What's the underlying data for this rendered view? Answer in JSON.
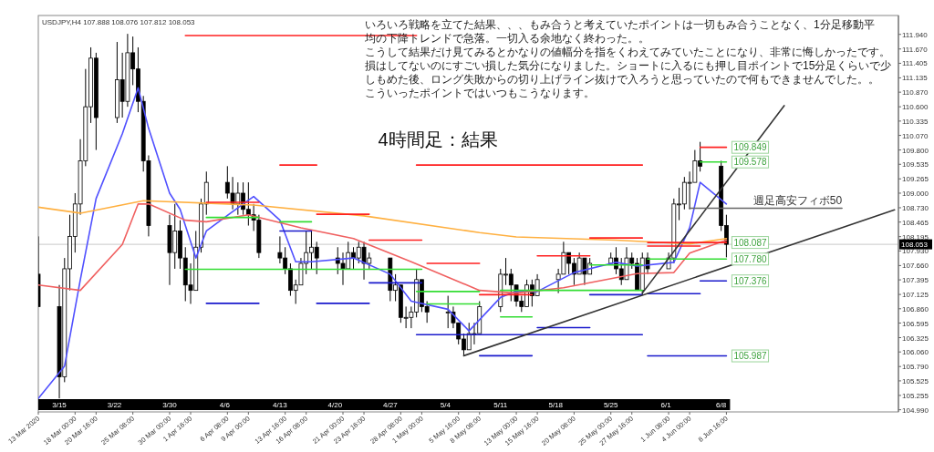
{
  "chart_data": {
    "type": "candlestick",
    "title": "4時間足：結果",
    "subtitle": "USDJPY,H4  107.888 108.076 107.812 108.053",
    "x": [
      "2020-03-13T08:00",
      "2020-03-16T00:00",
      "2020-03-16T16:00",
      "2020-03-17T08:00",
      "2020-03-18T00:00",
      "2020-03-18T16:00",
      "2020-03-19T08:00",
      "2020-03-20T00:00",
      "2020-03-20T16:00",
      "2020-03-23T08:00",
      "2020-03-24T00:00",
      "2020-03-24T16:00",
      "2020-03-25T08:00",
      "2020-03-26T00:00",
      "2020-03-26T16:00",
      "2020-03-27T08:00",
      "2020-03-30T00:00",
      "2020-03-30T16:00",
      "2020-03-31T08:00",
      "2020-04-01T00:00",
      "2020-04-01T16:00",
      "2020-04-02T08:00",
      "2020-04-03T00:00",
      "2020-04-03T16:00",
      "2020-04-06T08:00",
      "2020-04-07T00:00",
      "2020-04-07T16:00",
      "2020-04-08T08:00",
      "2020-04-09T00:00",
      "2020-04-09T16:00",
      "2020-04-10T08:00",
      "2020-04-13T00:00",
      "2020-04-13T16:00",
      "2020-04-14T08:00",
      "2020-04-15T00:00",
      "2020-04-15T16:00",
      "2020-04-16T08:00",
      "2020-04-17T00:00",
      "2020-04-17T16:00",
      "2020-04-20T08:00",
      "2020-04-21T00:00",
      "2020-04-21T16:00",
      "2020-04-22T08:00",
      "2020-04-23T00:00",
      "2020-04-23T16:00",
      "2020-04-24T08:00",
      "2020-04-27T00:00",
      "2020-04-27T16:00",
      "2020-04-28T08:00",
      "2020-04-29T00:00",
      "2020-04-29T16:00",
      "2020-04-30T08:00",
      "2020-05-01T00:00",
      "2020-05-01T16:00",
      "2020-05-04T08:00",
      "2020-05-05T00:00",
      "2020-05-05T16:00",
      "2020-05-06T08:00",
      "2020-05-07T00:00",
      "2020-05-07T16:00",
      "2020-05-08T08:00",
      "2020-05-11T00:00",
      "2020-05-11T16:00",
      "2020-05-12T08:00",
      "2020-05-13T00:00",
      "2020-05-13T16:00",
      "2020-05-14T08:00",
      "2020-05-15T00:00",
      "2020-05-15T16:00",
      "2020-05-18T08:00",
      "2020-05-19T00:00",
      "2020-05-19T16:00",
      "2020-05-20T08:00",
      "2020-05-21T00:00",
      "2020-05-21T16:00",
      "2020-05-22T08:00",
      "2020-05-25T00:00",
      "2020-05-25T16:00",
      "2020-05-26T08:00",
      "2020-05-27T00:00",
      "2020-05-27T16:00",
      "2020-05-28T08:00",
      "2020-05-29T00:00",
      "2020-05-29T16:00",
      "2020-06-01T08:00",
      "2020-06-02T00:00",
      "2020-06-02T16:00",
      "2020-06-03T08:00",
      "2020-06-04T00:00",
      "2020-06-04T16:00",
      "2020-06-05T08:00",
      "2020-06-08T00:00",
      "2020-06-08T16:00"
    ],
    "ohlc": [
      [
        107.5,
        108.2,
        106.9,
        106.9
      ],
      [
        106.9,
        107.3,
        105.2,
        105.6
      ],
      [
        105.6,
        107.8,
        105.5,
        107.6
      ],
      [
        107.6,
        108.6,
        107.2,
        108.2
      ],
      [
        108.2,
        109.0,
        107.9,
        108.8
      ],
      [
        108.8,
        110.0,
        108.6,
        109.6
      ],
      [
        109.6,
        111.3,
        109.5,
        110.6
      ],
      [
        110.6,
        111.7,
        110.3,
        111.5
      ],
      [
        111.5,
        111.6,
        109.8,
        110.4
      ],
      [
        110.4,
        111.8,
        110.3,
        111.1
      ],
      [
        111.1,
        111.6,
        110.4,
        110.7
      ],
      [
        110.7,
        111.95,
        110.6,
        111.6
      ],
      [
        111.6,
        111.9,
        111.0,
        111.3
      ],
      [
        111.3,
        111.7,
        110.5,
        110.7
      ],
      [
        110.7,
        110.8,
        109.4,
        109.6
      ],
      [
        109.6,
        109.7,
        108.2,
        108.4
      ],
      [
        108.4,
        108.6,
        107.3,
        107.9
      ],
      [
        107.9,
        108.8,
        107.6,
        108.3
      ],
      [
        108.3,
        108.5,
        107.6,
        107.8
      ],
      [
        107.8,
        108.0,
        107.0,
        107.3
      ],
      [
        107.3,
        107.7,
        106.95,
        107.2
      ],
      [
        107.2,
        108.3,
        107.2,
        108.0
      ],
      [
        108.0,
        108.9,
        107.9,
        108.8
      ],
      [
        108.8,
        109.4,
        108.6,
        109.2
      ],
      [
        109.2,
        109.5,
        108.9,
        109.0
      ],
      [
        109.0,
        109.3,
        108.7,
        108.8
      ],
      [
        108.8,
        109.2,
        108.6,
        109.0
      ],
      [
        109.0,
        109.2,
        108.6,
        108.7
      ],
      [
        108.7,
        109.2,
        108.4,
        108.6
      ],
      [
        108.6,
        108.8,
        108.3,
        108.5
      ],
      [
        108.5,
        108.6,
        107.8,
        107.9
      ],
      [
        107.9,
        108.2,
        107.7,
        107.8
      ],
      [
        107.8,
        108.0,
        107.5,
        107.6
      ],
      [
        107.6,
        107.7,
        107.1,
        107.2
      ],
      [
        107.2,
        107.4,
        106.95,
        107.3
      ],
      [
        107.3,
        107.8,
        107.3,
        107.7
      ],
      [
        107.7,
        108.3,
        107.5,
        107.9
      ],
      [
        107.9,
        108.3,
        107.6,
        108.0
      ],
      [
        108.0,
        108.1,
        107.5,
        107.8
      ],
      [
        107.8,
        108.0,
        107.5,
        107.7
      ],
      [
        107.7,
        107.9,
        107.3,
        107.6
      ],
      [
        107.6,
        108.1,
        107.6,
        107.9
      ],
      [
        107.9,
        108.0,
        107.6,
        107.8
      ],
      [
        107.8,
        108.1,
        107.7,
        108.0
      ],
      [
        108.0,
        108.1,
        107.4,
        107.7
      ],
      [
        107.7,
        107.9,
        107.6,
        107.8
      ],
      [
        107.8,
        107.8,
        107.0,
        107.2
      ],
      [
        107.2,
        107.5,
        107.0,
        107.3
      ],
      [
        107.3,
        107.3,
        106.6,
        106.7
      ],
      [
        106.7,
        106.9,
        106.5,
        106.7
      ],
      [
        106.7,
        106.9,
        106.5,
        106.8
      ],
      [
        106.8,
        107.6,
        106.7,
        107.4
      ],
      [
        107.4,
        107.4,
        106.8,
        106.9
      ],
      [
        106.9,
        107.0,
        106.6,
        106.8
      ],
      [
        106.8,
        107.1,
        106.5,
        106.8
      ],
      [
        106.8,
        106.9,
        106.5,
        106.6
      ],
      [
        106.6,
        106.6,
        106.2,
        106.3
      ],
      [
        106.3,
        106.4,
        105.99,
        106.1
      ],
      [
        106.1,
        106.6,
        106.1,
        106.4
      ],
      [
        106.4,
        106.6,
        106.2,
        106.4
      ],
      [
        106.4,
        107.0,
        106.4,
        106.9
      ],
      [
        106.9,
        107.6,
        106.8,
        107.5
      ],
      [
        107.5,
        107.8,
        107.3,
        107.5
      ],
      [
        107.5,
        107.6,
        107.0,
        107.3
      ],
      [
        107.3,
        107.3,
        106.9,
        107.0
      ],
      [
        107.0,
        107.1,
        106.8,
        106.9
      ],
      [
        106.9,
        107.4,
        106.9,
        107.3
      ],
      [
        107.3,
        107.4,
        106.9,
        107.1
      ],
      [
        107.1,
        107.5,
        107.1,
        107.4
      ],
      [
        107.4,
        107.6,
        107.15,
        107.5
      ],
      [
        107.5,
        108.1,
        107.5,
        107.9
      ],
      [
        107.9,
        107.9,
        107.5,
        107.7
      ],
      [
        107.7,
        107.8,
        107.3,
        107.5
      ],
      [
        107.5,
        107.9,
        107.5,
        107.8
      ],
      [
        107.8,
        107.8,
        107.3,
        107.5
      ],
      [
        107.5,
        107.8,
        107.5,
        107.7
      ],
      [
        107.7,
        107.9,
        107.7,
        107.8
      ],
      [
        107.8,
        108.0,
        107.5,
        107.6
      ],
      [
        107.6,
        107.8,
        107.3,
        107.4
      ],
      [
        107.4,
        108.0,
        107.4,
        107.8
      ],
      [
        107.8,
        107.9,
        107.6,
        107.7
      ],
      [
        107.7,
        107.8,
        107.2,
        107.2
      ],
      [
        107.2,
        107.9,
        107.12,
        107.8
      ],
      [
        107.8,
        107.9,
        107.5,
        107.6
      ],
      [
        107.6,
        107.9,
        107.6,
        107.8
      ],
      [
        107.8,
        108.9,
        107.7,
        108.8
      ],
      [
        108.8,
        109.1,
        108.5,
        108.8
      ],
      [
        108.8,
        109.3,
        108.7,
        109.2
      ],
      [
        109.2,
        109.4,
        108.7,
        109.2
      ],
      [
        109.2,
        109.8,
        109.2,
        109.6
      ],
      [
        109.6,
        109.95,
        109.4,
        109.5
      ],
      [
        109.5,
        109.6,
        108.3,
        108.4
      ],
      [
        108.4,
        108.6,
        107.812,
        108.053
      ]
    ],
    "series": [
      {
        "type": "line",
        "color": "#5050ff",
        "x": [
          "2020-03-13T08:00",
          "2020-03-16T16:00",
          "2020-03-18T16:00",
          "2020-03-20T16:00",
          "2020-03-24T00:00",
          "2020-03-26T00:00",
          "2020-03-27T08:00",
          "2020-03-30T00:00",
          "2020-03-31T08:00",
          "2020-04-02T08:00",
          "2020-04-03T16:00",
          "2020-04-08T08:00",
          "2020-04-09T16:00",
          "2020-04-13T00:00",
          "2020-04-15T00:00",
          "2020-04-17T00:00",
          "2020-04-22T08:00",
          "2020-04-27T00:00",
          "2020-04-29T16:00",
          "2020-05-04T08:00",
          "2020-05-07T00:00",
          "2020-05-11T00:00",
          "2020-05-13T00:00",
          "2020-05-15T16:00",
          "2020-05-20T08:00",
          "2020-05-25T16:00",
          "2020-05-28T08:00",
          "2020-06-02T00:00",
          "2020-06-04T00:00",
          "2020-06-05T08:00",
          "2020-06-08T16:00"
        ],
        "values": [
          105.2,
          105.8,
          107.4,
          108.9,
          110.1,
          110.95,
          110.2,
          109.0,
          108.7,
          107.8,
          108.3,
          108.8,
          108.94,
          108.5,
          107.73,
          107.73,
          107.8,
          107.5,
          107.0,
          106.85,
          106.45,
          107.07,
          107.18,
          107.18,
          107.53,
          107.72,
          107.65,
          107.72,
          108.36,
          109.2,
          108.8
        ]
      },
      {
        "type": "line",
        "color": "#f06060",
        "x": [
          "2020-03-13T08:00",
          "2020-03-18T16:00",
          "2020-03-24T00:00",
          "2020-03-26T00:00",
          "2020-03-27T08:00",
          "2020-04-01T00:00",
          "2020-04-03T16:00",
          "2020-04-09T00:00",
          "2020-04-15T16:00",
          "2020-04-22T08:00",
          "2020-04-29T16:00",
          "2020-05-08T08:00",
          "2020-05-13T00:00",
          "2020-05-19T00:00",
          "2020-05-28T08:00",
          "2020-06-02T00:00",
          "2020-06-04T00:00",
          "2020-06-08T16:00"
        ],
        "values": [
          107.3,
          107.2,
          108.05,
          108.8,
          108.8,
          108.5,
          108.47,
          108.6,
          108.36,
          108.16,
          107.73,
          107.2,
          107.15,
          107.25,
          107.51,
          107.53,
          107.89,
          108.13
        ]
      },
      {
        "type": "line",
        "color": "#ffb040",
        "x": [
          "2020-03-13T08:00",
          "2020-03-18T16:00",
          "2020-03-26T16:00",
          "2020-04-09T16:00",
          "2020-04-23T16:00",
          "2020-05-08T08:00",
          "2020-05-13T00:00",
          "2020-05-25T16:00",
          "2020-06-04T00:00",
          "2020-06-08T16:00"
        ],
        "values": [
          108.74,
          108.63,
          108.86,
          108.78,
          108.58,
          108.27,
          108.19,
          108.13,
          108.06,
          108.16
        ]
      },
      {
        "type": "line",
        "color": "#ff2020",
        "x": [
          "2020-04-01T00:00",
          "2020-04-30T08:00"
        ],
        "values": [
          111.92,
          111.92
        ]
      },
      {
        "type": "line",
        "color": "#ff2020",
        "x": [
          "2020-04-30T08:00",
          "2020-05-29T00:00"
        ],
        "values": [
          109.52,
          109.52
        ]
      },
      {
        "type": "line",
        "color": "#ff2020",
        "x": [
          "2020-04-13T00:00",
          "2020-04-17T16:00"
        ],
        "values": [
          109.52,
          109.52
        ]
      },
      {
        "type": "line",
        "color": "#ff2020",
        "x": [
          "2020-04-03T16:00",
          "2020-04-10T08:00"
        ],
        "values": [
          108.83,
          108.83
        ]
      },
      {
        "type": "line",
        "color": "#ff2020",
        "x": [
          "2020-04-17T16:00",
          "2020-04-24T08:00"
        ],
        "values": [
          108.61,
          108.61
        ]
      },
      {
        "type": "line",
        "color": "#ff2020",
        "x": [
          "2020-04-24T08:00",
          "2020-05-01T00:00"
        ],
        "values": [
          108.13,
          108.13
        ]
      },
      {
        "type": "line",
        "color": "#ff2020",
        "x": [
          "2020-05-01T16:00",
          "2020-05-08T08:00"
        ],
        "values": [
          107.7,
          107.7
        ]
      },
      {
        "type": "line",
        "color": "#ff2020",
        "x": [
          "2020-05-08T08:00",
          "2020-05-15T00:00"
        ],
        "values": [
          107.12,
          107.12
        ]
      },
      {
        "type": "line",
        "color": "#ff2020",
        "x": [
          "2020-05-15T16:00",
          "2020-05-22T08:00"
        ],
        "values": [
          107.84,
          107.84
        ]
      },
      {
        "type": "line",
        "color": "#ff2020",
        "x": [
          "2020-05-22T08:00",
          "2020-05-29T00:00"
        ],
        "values": [
          108.17,
          108.17
        ]
      },
      {
        "type": "line",
        "color": "#ff2020",
        "x": [
          "2020-05-29T16:00",
          "2020-06-08T16:00"
        ],
        "values": [
          108.087,
          108.087
        ]
      },
      {
        "type": "line",
        "color": "#ff2020",
        "x": [
          "2020-05-29T16:00",
          "2020-06-05T08:00"
        ],
        "values": [
          108.02,
          108.02
        ]
      },
      {
        "type": "line",
        "color": "#ff2020",
        "x": [
          "2020-06-05T08:00",
          "2020-06-08T16:00"
        ],
        "values": [
          109.849,
          109.849
        ]
      },
      {
        "type": "line",
        "color": "#33dd33",
        "x": [
          "2020-04-01T00:00",
          "2020-05-01T00:00"
        ],
        "values": [
          107.59,
          107.59
        ]
      },
      {
        "type": "line",
        "color": "#33dd33",
        "x": [
          "2020-04-03T16:00",
          "2020-04-10T08:00"
        ],
        "values": [
          108.55,
          108.55
        ]
      },
      {
        "type": "line",
        "color": "#33dd33",
        "x": [
          "2020-04-13T00:00",
          "2020-04-17T00:00"
        ],
        "values": [
          108.47,
          108.47
        ]
      },
      {
        "type": "line",
        "color": "#33dd33",
        "x": [
          "2020-04-30T08:00",
          "2020-05-08T08:00"
        ],
        "values": [
          107.18,
          107.18
        ]
      },
      {
        "type": "line",
        "color": "#33dd33",
        "x": [
          "2020-05-01T16:00",
          "2020-05-08T08:00"
        ],
        "values": [
          106.95,
          106.95
        ]
      },
      {
        "type": "line",
        "color": "#33dd33",
        "x": [
          "2020-05-11T00:00",
          "2020-05-15T00:00"
        ],
        "values": [
          106.71,
          106.71
        ]
      },
      {
        "type": "line",
        "color": "#33dd33",
        "x": [
          "2020-05-11T00:00",
          "2020-05-29T00:00"
        ],
        "values": [
          107.2,
          107.2
        ]
      },
      {
        "type": "line",
        "color": "#33dd33",
        "x": [
          "2020-05-22T08:00",
          "2020-05-29T00:00"
        ],
        "values": [
          107.67,
          107.67
        ]
      },
      {
        "type": "line",
        "color": "#33dd33",
        "x": [
          "2020-05-29T16:00",
          "2020-06-08T16:00"
        ],
        "values": [
          107.78,
          107.78
        ]
      },
      {
        "type": "line",
        "color": "#33dd33",
        "x": [
          "2020-06-05T08:00",
          "2020-06-08T16:00"
        ],
        "values": [
          109.578,
          109.578
        ]
      },
      {
        "type": "line",
        "color": "#1a1acc",
        "x": [
          "2020-04-03T16:00",
          "2020-04-10T08:00"
        ],
        "values": [
          106.96,
          106.96
        ]
      },
      {
        "type": "line",
        "color": "#1a1acc",
        "x": [
          "2020-04-13T00:00",
          "2020-04-17T00:00"
        ],
        "values": [
          108.3,
          108.3
        ]
      },
      {
        "type": "line",
        "color": "#1a1acc",
        "x": [
          "2020-04-17T16:00",
          "2020-04-24T08:00"
        ],
        "values": [
          106.96,
          106.96
        ]
      },
      {
        "type": "line",
        "color": "#1a1acc",
        "x": [
          "2020-04-24T08:00",
          "2020-05-01T00:00"
        ],
        "values": [
          107.34,
          107.34
        ]
      },
      {
        "type": "line",
        "color": "#1a1acc",
        "x": [
          "2020-04-30T08:00",
          "2020-05-29T00:00"
        ],
        "values": [
          106.38,
          106.38
        ]
      },
      {
        "type": "line",
        "color": "#1a1acc",
        "x": [
          "2020-05-08T08:00",
          "2020-05-15T00:00"
        ],
        "values": [
          105.99,
          105.99
        ]
      },
      {
        "type": "line",
        "color": "#1a1acc",
        "x": [
          "2020-05-15T16:00",
          "2020-05-22T08:00"
        ],
        "values": [
          106.51,
          106.51
        ]
      },
      {
        "type": "line",
        "color": "#1a1acc",
        "x": [
          "2020-05-22T08:00",
          "2020-05-29T00:00"
        ],
        "values": [
          107.12,
          107.12
        ]
      },
      {
        "type": "line",
        "color": "#1a1acc",
        "x": [
          "2020-05-29T16:00",
          "2020-06-05T08:00"
        ],
        "values": [
          107.14,
          107.14
        ]
      },
      {
        "type": "line",
        "color": "#1a1acc",
        "x": [
          "2020-06-05T08:00",
          "2020-06-08T16:00"
        ],
        "values": [
          107.376,
          107.376
        ]
      },
      {
        "type": "line",
        "color": "#1a1acc",
        "x": [
          "2020-05-29T16:00",
          "2020-06-08T16:00"
        ],
        "values": [
          105.987,
          105.987
        ]
      },
      {
        "type": "line",
        "color": "#333333",
        "x": [
          "2020-05-06T08:00",
          "2020-06-30T00:00"
        ],
        "values": [
          105.99,
          108.69
        ]
      },
      {
        "type": "line",
        "color": "#333333",
        "x": [
          "2020-05-29T00:00",
          "2020-06-16T00:00"
        ],
        "values": [
          107.15,
          110.62
        ]
      },
      {
        "type": "line",
        "name": "週足高安フィボ50",
        "color": "#666666",
        "x": [
          "2020-06-04T00:00",
          "2020-06-23T08:00"
        ],
        "values": [
          108.72,
          108.72
        ]
      }
    ],
    "ref_lines": [
      {
        "axis": "y",
        "value": 108.053,
        "label": "108.053",
        "color": "#c8c8c8"
      }
    ],
    "annotations": [
      "いろいろ戦略を立てた結果、、、もみ合うと考えていたポイントは一切もみ合うことなく、1分足移動平",
      "均の下降トレンドで急落。一切入る余地なく終わった。。",
      "こうして結果だけ見てみるとかなりの値幅分を指をくわえてみていたことになり、非常に悔しかったです。",
      "損はしてないのにすごい損した気分になりました。ショートに入るにも押し目ポイントで15分足くらいで少",
      "しもめた後、ロング失敗からの切り上げライン抜けで入ろうと思っていたので何もできませんでした。。",
      "こういったポイントではいつもこうなります。",
      {
        "text": "109.849",
        "x": "2020-06-08T16:00",
        "y": 109.849
      },
      {
        "text": "109.578",
        "x": "2020-06-08T16:00",
        "y": 109.578
      },
      {
        "text": "108.087",
        "x": "2020-06-08T16:00",
        "y": 108.087
      },
      {
        "text": "107.780",
        "x": "2020-06-08T16:00",
        "y": 107.78
      },
      {
        "text": "107.376",
        "x": "2020-06-08T16:00",
        "y": 107.376
      },
      {
        "text": "105.987",
        "x": "2020-06-08T16:00",
        "y": 105.987
      }
    ],
    "xlim": [
      "2020-03-13T08:00",
      "2020-06-30T12:00"
    ],
    "x2lim": [
      "2020-03-13T08:00",
      "2020-06-30T12:00"
    ],
    "x2ticks": [
      {
        "value": "2020-03-16T00:00",
        "label": "3/15"
      },
      {
        "value": "2020-03-23T00:00",
        "label": "3/22"
      },
      {
        "value": "2020-03-30T00:00",
        "label": "3/30"
      },
      {
        "value": "2020-04-06T00:00",
        "label": "4/6"
      },
      {
        "value": "2020-04-13T00:00",
        "label": "4/13"
      },
      {
        "value": "2020-04-20T00:00",
        "label": "4/20"
      },
      {
        "value": "2020-04-27T00:00",
        "label": "4/27"
      },
      {
        "value": "2020-05-04T00:00",
        "label": "5/4"
      },
      {
        "value": "2020-05-11T00:00",
        "label": "5/11"
      },
      {
        "value": "2020-05-18T00:00",
        "label": "5/18"
      },
      {
        "value": "2020-05-25T00:00",
        "label": "5/25"
      },
      {
        "value": "2020-06-01T00:00",
        "label": "6/1"
      },
      {
        "value": "2020-06-08T00:00",
        "label": "6/8"
      }
    ],
    "xticks": [
      {
        "value": "2020-03-13T08:00",
        "label": "13 Mar 2020"
      },
      {
        "value": "2020-03-18T00:00",
        "label": "18 Mar 00:00"
      },
      {
        "value": "2020-03-20T16:00",
        "label": "20 Mar 16:00"
      },
      {
        "value": "2020-03-25T08:00",
        "label": "25 Mar 08:00"
      },
      {
        "value": "2020-03-30T00:00",
        "label": "30 Mar 00:00"
      },
      {
        "value": "2020-04-01T16:00",
        "label": "1 Apr 16:00"
      },
      {
        "value": "2020-04-06T08:00",
        "label": "6 Apr 08:00"
      },
      {
        "value": "2020-04-09T00:00",
        "label": "9 Apr 00:00"
      },
      {
        "value": "2020-04-13T16:00",
        "label": "13 Apr 16:00"
      },
      {
        "value": "2020-04-16T08:00",
        "label": "16 Apr 08:00"
      },
      {
        "value": "2020-04-21T00:00",
        "label": "21 Apr 00:00"
      },
      {
        "value": "2020-04-23T16:00",
        "label": "23 Apr 16:00"
      },
      {
        "value": "2020-04-28T08:00",
        "label": "28 Apr 08:00"
      },
      {
        "value": "2020-05-01T00:00",
        "label": "1 May 00:00"
      },
      {
        "value": "2020-05-05T16:00",
        "label": "5 May 16:00"
      },
      {
        "value": "2020-05-08T08:00",
        "label": "8 May 08:00"
      },
      {
        "value": "2020-05-13T00:00",
        "label": "13 May 00:00"
      },
      {
        "value": "2020-05-15T16:00",
        "label": "15 May 16:00"
      },
      {
        "value": "2020-05-20T08:00",
        "label": "20 May 08:00"
      },
      {
        "value": "2020-05-25T00:00",
        "label": "25 May 00:00"
      },
      {
        "value": "2020-05-27T16:00",
        "label": "27 May 16:00"
      },
      {
        "value": "2020-06-01T08:00",
        "label": "1 Jun 08:00"
      },
      {
        "value": "2020-06-04T00:00",
        "label": "4 Jun 00:00"
      },
      {
        "value": "2020-06-08T16:00",
        "label": "8 Jun 16:00"
      }
    ],
    "ylim": [
      104.95,
      112.29
    ],
    "yticks": [
      {
        "value": 111.94,
        "label": "111.940"
      },
      {
        "value": 111.67,
        "label": "111.670"
      },
      {
        "value": 111.405,
        "label": "111.405"
      },
      {
        "value": 111.135,
        "label": "111.135"
      },
      {
        "value": 110.87,
        "label": "110.870"
      },
      {
        "value": 110.6,
        "label": "110.600"
      },
      {
        "value": 110.335,
        "label": "110.335"
      },
      {
        "value": 110.07,
        "label": "110.070"
      },
      {
        "value": 109.8,
        "label": "109.800"
      },
      {
        "value": 109.535,
        "label": "109.535"
      },
      {
        "value": 109.265,
        "label": "109.265"
      },
      {
        "value": 109.0,
        "label": "109.000"
      },
      {
        "value": 108.73,
        "label": "108.730"
      },
      {
        "value": 108.465,
        "label": "108.465"
      },
      {
        "value": 108.195,
        "label": "108.195"
      },
      {
        "value": 107.93,
        "label": "107.930"
      },
      {
        "value": 107.66,
        "label": "107.660"
      },
      {
        "value": 107.395,
        "label": "107.395"
      },
      {
        "value": 107.125,
        "label": "107.125"
      },
      {
        "value": 106.86,
        "label": "106.860"
      },
      {
        "value": 106.595,
        "label": "106.595"
      },
      {
        "value": 106.325,
        "label": "106.325"
      },
      {
        "value": 106.06,
        "label": "106.060"
      },
      {
        "value": 105.79,
        "label": "105.790"
      },
      {
        "value": 105.525,
        "label": "105.525"
      },
      {
        "value": 105.255,
        "label": "105.255"
      },
      {
        "value": 104.99,
        "label": "104.990"
      }
    ]
  }
}
